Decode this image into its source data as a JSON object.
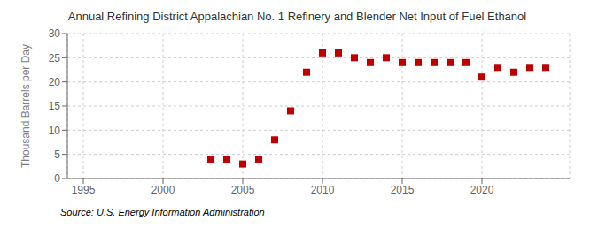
{
  "chart_data": {
    "type": "scatter",
    "title": "Annual Refining District Appalachian No. 1 Refinery and Blender Net Input of Fuel Ethanol",
    "ylabel": "Thousand Barrels per Day",
    "annotation": "Source: U.S. Energy Information Administration",
    "x": [
      2003,
      2004,
      2005,
      2006,
      2007,
      2008,
      2009,
      2010,
      2011,
      2012,
      2013,
      2014,
      2015,
      2016,
      2017,
      2018,
      2019,
      2020,
      2021,
      2022,
      2023,
      2024
    ],
    "values": [
      4,
      4,
      3,
      4,
      8,
      14,
      22,
      26,
      26,
      25,
      24,
      25,
      24,
      24,
      24,
      24,
      24,
      21,
      23,
      22,
      23,
      23
    ],
    "color": "#c00000",
    "marker": "square",
    "xlim": [
      1994,
      2025.5
    ],
    "ylim": [
      0,
      30
    ],
    "xticks": [
      1995,
      2000,
      2005,
      2010,
      2015,
      2020
    ],
    "yticks": [
      0,
      5,
      10,
      15,
      20,
      25,
      30
    ],
    "grid": true
  }
}
